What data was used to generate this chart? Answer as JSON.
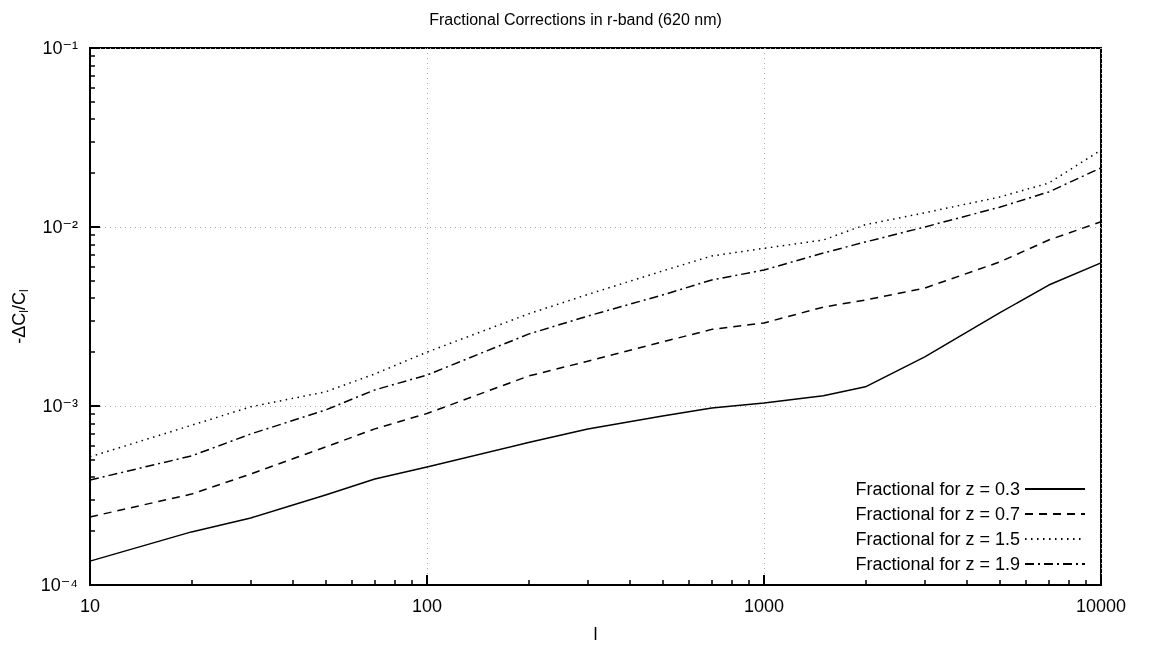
{
  "chart_data": {
    "type": "line",
    "title": "Fractional Corrections in r-band (620 nm)",
    "xlabel": "l",
    "ylabel": "-ΔC$_{l}$/C$_{l}$",
    "log": "xy",
    "grid": true,
    "legend": "bottom right",
    "marker": "none",
    "xlim": [
      10,
      10000
    ],
    "xticks": [
      10,
      100,
      1000,
      10000
    ],
    "ylim": [
      0.0001,
      0.1
    ],
    "yticks": [
      {
        "value": 0.0001,
        "label": "10⁻⁴"
      },
      {
        "value": 0.001,
        "label": "10⁻³"
      },
      {
        "value": 0.01,
        "label": "10⁻²"
      },
      {
        "value": 0.1,
        "label": "10⁻¹"
      }
    ],
    "x": [
      10,
      20,
      30,
      50,
      70,
      100,
      200,
      300,
      500,
      700,
      1000,
      1500,
      2000,
      3000,
      5000,
      7000,
      10000
    ],
    "series": [
      {
        "name": "Fractional for z = 0.3",
        "color": "#000000",
        "line_style": "solid",
        "values": [
          0.000136,
          0.000198,
          0.000237,
          0.000318,
          0.000391,
          0.000456,
          0.000625,
          0.000744,
          0.00088,
          0.000975,
          0.00104,
          0.00114,
          0.00128,
          0.00188,
          0.00331,
          0.00474,
          0.0063
        ]
      },
      {
        "name": "Fractional for z = 0.7",
        "color": "#000000",
        "line_style": "dashed",
        "values": [
          0.00024,
          0.000322,
          0.000417,
          0.00059,
          0.000745,
          0.000908,
          0.00147,
          0.00178,
          0.00228,
          0.00268,
          0.00291,
          0.00357,
          0.00391,
          0.00456,
          0.00637,
          0.00846,
          0.0107
        ]
      },
      {
        "name": "Fractional for z = 1.5",
        "color": "#000000",
        "line_style": "dotted",
        "values": [
          0.00052,
          0.00078,
          0.00099,
          0.0012,
          0.00151,
          0.002,
          0.00327,
          0.0042,
          0.00568,
          0.00689,
          0.0076,
          0.00846,
          0.0103,
          0.012,
          0.0147,
          0.0176,
          0.0269
        ]
      },
      {
        "name": "Fractional for z = 1.9",
        "color": "#000000",
        "line_style": "dashdot",
        "values": [
          0.000386,
          0.000526,
          0.000698,
          0.00095,
          0.00123,
          0.00149,
          0.00252,
          0.00318,
          0.00417,
          0.00506,
          0.00575,
          0.00716,
          0.00825,
          0.01,
          0.0129,
          0.0157,
          0.0214
        ]
      }
    ]
  }
}
